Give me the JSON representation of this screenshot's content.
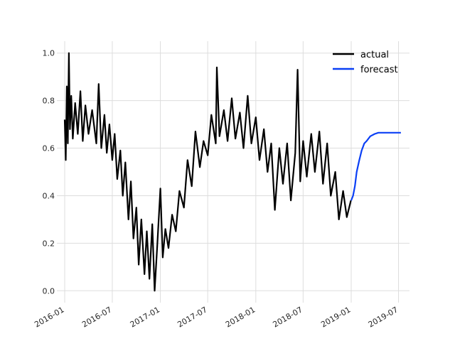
{
  "chart_data": {
    "type": "line",
    "title": "",
    "xlabel": "",
    "ylabel": "",
    "grid": true,
    "legend_position": "top-right",
    "xlim": [
      "2015-12-02",
      "2019-08-12"
    ],
    "ylim": [
      -0.05,
      1.05
    ],
    "x_ticks": [
      {
        "date": "2016-01-01",
        "label": "2016-01"
      },
      {
        "date": "2016-07-01",
        "label": "2016-07"
      },
      {
        "date": "2017-01-01",
        "label": "2017-01"
      },
      {
        "date": "2017-07-01",
        "label": "2017-07"
      },
      {
        "date": "2018-01-01",
        "label": "2018-01"
      },
      {
        "date": "2018-07-01",
        "label": "2018-07"
      },
      {
        "date": "2019-01-01",
        "label": "2019-01"
      },
      {
        "date": "2019-07-01",
        "label": "2019-07"
      }
    ],
    "y_ticks": [
      {
        "value": 0.0,
        "label": "0.0"
      },
      {
        "value": 0.2,
        "label": "0.2"
      },
      {
        "value": 0.4,
        "label": "0.4"
      },
      {
        "value": 0.6,
        "label": "0.6"
      },
      {
        "value": 0.8,
        "label": "0.8"
      },
      {
        "value": 1.0,
        "label": "1.0"
      }
    ],
    "series": [
      {
        "name": "actual",
        "color": "#000000",
        "points": [
          [
            "2016-01-01",
            0.72
          ],
          [
            "2016-01-05",
            0.55
          ],
          [
            "2016-01-09",
            0.86
          ],
          [
            "2016-01-13",
            0.62
          ],
          [
            "2016-01-17",
            1.0
          ],
          [
            "2016-01-21",
            0.68
          ],
          [
            "2016-01-26",
            0.82
          ],
          [
            "2016-02-01",
            0.64
          ],
          [
            "2016-02-10",
            0.79
          ],
          [
            "2016-02-20",
            0.66
          ],
          [
            "2016-03-01",
            0.84
          ],
          [
            "2016-03-10",
            0.63
          ],
          [
            "2016-03-20",
            0.78
          ],
          [
            "2016-04-01",
            0.66
          ],
          [
            "2016-04-15",
            0.76
          ],
          [
            "2016-05-01",
            0.62
          ],
          [
            "2016-05-10",
            0.87
          ],
          [
            "2016-05-20",
            0.6
          ],
          [
            "2016-06-01",
            0.74
          ],
          [
            "2016-06-10",
            0.58
          ],
          [
            "2016-06-20",
            0.7
          ],
          [
            "2016-07-01",
            0.55
          ],
          [
            "2016-07-10",
            0.66
          ],
          [
            "2016-07-20",
            0.47
          ],
          [
            "2016-08-01",
            0.59
          ],
          [
            "2016-08-10",
            0.4
          ],
          [
            "2016-08-20",
            0.54
          ],
          [
            "2016-09-01",
            0.3
          ],
          [
            "2016-09-10",
            0.46
          ],
          [
            "2016-09-20",
            0.22
          ],
          [
            "2016-10-01",
            0.35
          ],
          [
            "2016-10-10",
            0.11
          ],
          [
            "2016-10-20",
            0.3
          ],
          [
            "2016-11-01",
            0.07
          ],
          [
            "2016-11-10",
            0.25
          ],
          [
            "2016-11-20",
            0.05
          ],
          [
            "2016-12-01",
            0.28
          ],
          [
            "2016-12-10",
            0.0
          ],
          [
            "2016-12-20",
            0.19
          ],
          [
            "2017-01-01",
            0.43
          ],
          [
            "2017-01-10",
            0.14
          ],
          [
            "2017-01-20",
            0.26
          ],
          [
            "2017-02-01",
            0.18
          ],
          [
            "2017-02-15",
            0.32
          ],
          [
            "2017-03-01",
            0.25
          ],
          [
            "2017-03-15",
            0.42
          ],
          [
            "2017-04-01",
            0.35
          ],
          [
            "2017-04-15",
            0.55
          ],
          [
            "2017-05-01",
            0.44
          ],
          [
            "2017-05-15",
            0.67
          ],
          [
            "2017-06-01",
            0.52
          ],
          [
            "2017-06-15",
            0.63
          ],
          [
            "2017-07-01",
            0.57
          ],
          [
            "2017-07-15",
            0.74
          ],
          [
            "2017-08-01",
            0.62
          ],
          [
            "2017-08-05",
            0.94
          ],
          [
            "2017-08-15",
            0.65
          ],
          [
            "2017-09-01",
            0.76
          ],
          [
            "2017-09-15",
            0.63
          ],
          [
            "2017-10-01",
            0.81
          ],
          [
            "2017-10-15",
            0.64
          ],
          [
            "2017-11-01",
            0.75
          ],
          [
            "2017-11-15",
            0.6
          ],
          [
            "2017-12-01",
            0.82
          ],
          [
            "2017-12-15",
            0.62
          ],
          [
            "2018-01-01",
            0.73
          ],
          [
            "2018-01-15",
            0.55
          ],
          [
            "2018-02-01",
            0.68
          ],
          [
            "2018-02-15",
            0.5
          ],
          [
            "2018-03-01",
            0.62
          ],
          [
            "2018-03-15",
            0.34
          ],
          [
            "2018-04-01",
            0.6
          ],
          [
            "2018-04-15",
            0.45
          ],
          [
            "2018-05-01",
            0.62
          ],
          [
            "2018-05-15",
            0.38
          ],
          [
            "2018-06-01",
            0.58
          ],
          [
            "2018-06-10",
            0.93
          ],
          [
            "2018-06-20",
            0.46
          ],
          [
            "2018-07-01",
            0.63
          ],
          [
            "2018-07-15",
            0.48
          ],
          [
            "2018-08-01",
            0.66
          ],
          [
            "2018-08-15",
            0.5
          ],
          [
            "2018-09-01",
            0.67
          ],
          [
            "2018-09-15",
            0.45
          ],
          [
            "2018-10-01",
            0.62
          ],
          [
            "2018-10-15",
            0.4
          ],
          [
            "2018-11-01",
            0.5
          ],
          [
            "2018-11-15",
            0.3
          ],
          [
            "2018-12-01",
            0.42
          ],
          [
            "2018-12-15",
            0.31
          ],
          [
            "2018-12-31",
            0.38
          ]
        ]
      },
      {
        "name": "forecast",
        "color": "#0a3ff5",
        "points": [
          [
            "2019-01-01",
            0.38
          ],
          [
            "2019-01-08",
            0.4
          ],
          [
            "2019-01-15",
            0.44
          ],
          [
            "2019-01-22",
            0.5
          ],
          [
            "2019-02-01",
            0.55
          ],
          [
            "2019-02-10",
            0.59
          ],
          [
            "2019-02-20",
            0.62
          ],
          [
            "2019-03-01",
            0.63
          ],
          [
            "2019-03-15",
            0.65
          ],
          [
            "2019-04-01",
            0.66
          ],
          [
            "2019-04-15",
            0.665
          ],
          [
            "2019-05-01",
            0.665
          ],
          [
            "2019-05-15",
            0.665
          ],
          [
            "2019-06-01",
            0.665
          ],
          [
            "2019-06-15",
            0.665
          ],
          [
            "2019-07-01",
            0.665
          ],
          [
            "2019-07-10",
            0.665
          ]
        ]
      }
    ]
  }
}
